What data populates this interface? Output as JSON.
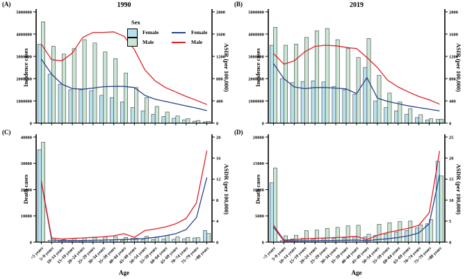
{
  "figure": {
    "background": "#ffffff",
    "x_axis_label": "Age",
    "age_categories": [
      "<5 years",
      "5~9 years",
      "10~14 years",
      "15~19 years",
      "20~24 years",
      "25~29 years",
      "30~34 years",
      "35~39 years",
      "40~44 years",
      "45~49 years",
      "50~54 years",
      "55~59 years",
      "60~64 years",
      "65~69 years",
      "70~74 years",
      "75~79 years",
      ">80 years"
    ],
    "colors": {
      "female_bar": "#b7e1f1",
      "male_bar": "#c9e7d4",
      "bar_stroke": "#3a3a3a",
      "female_line": "#27408b",
      "male_line": "#e01f26",
      "axis": "#000000"
    },
    "legend": {
      "title": "Sex",
      "bar_entries": [
        {
          "label": "Female",
          "color_key": "female_bar"
        },
        {
          "label": "Male",
          "color_key": "male_bar"
        }
      ],
      "line_entries": [
        {
          "label": "Female",
          "color_key": "female_line"
        },
        {
          "label": "Male",
          "color_key": "male_line"
        }
      ]
    }
  },
  "chart_data": [
    {
      "id": "A",
      "panel_label": "(A)",
      "title": "1990",
      "type": "bar+line",
      "left_axis": {
        "label": "Incidence cases",
        "min": 0,
        "max": 5000000,
        "ticks": [
          0,
          1000000,
          2000000,
          3000000,
          4000000,
          5000000
        ]
      },
      "right_axis": {
        "label": "ASIR (per 100,000)",
        "min": 0,
        "max": 2000,
        "ticks": [
          0,
          400,
          800,
          1200,
          1600,
          2000
        ]
      },
      "series": {
        "female_bars": [
          3550000,
          2200000,
          1750000,
          1500000,
          1500000,
          1450000,
          1250000,
          1150000,
          950000,
          700000,
          550000,
          400000,
          300000,
          220000,
          150000,
          90000,
          60000
        ],
        "male_bars": [
          4550000,
          3450000,
          3100000,
          3350000,
          3750000,
          3600000,
          3200000,
          2900000,
          2250000,
          1600000,
          1150000,
          750000,
          500000,
          320000,
          200000,
          120000,
          80000
        ],
        "female_line": [
          1150,
          880,
          700,
          620,
          610,
          630,
          655,
          660,
          660,
          640,
          500,
          430,
          390,
          350,
          310,
          270,
          225
        ],
        "male_line": [
          1420,
          1140,
          1120,
          1260,
          1540,
          1630,
          1630,
          1640,
          1560,
          1320,
          960,
          760,
          640,
          560,
          480,
          410,
          335
        ]
      }
    },
    {
      "id": "B",
      "panel_label": "(B)",
      "title": "2019",
      "type": "bar+line",
      "left_axis": {
        "label": "Incidence cases",
        "min": 0,
        "max": 5000000,
        "ticks": [
          0,
          1000000,
          2000000,
          3000000,
          4000000,
          5000000
        ]
      },
      "right_axis": {
        "label": "ASIR (per 100,000)",
        "min": 0,
        "max": 2000,
        "ticks": [
          0,
          400,
          800,
          1200,
          1600,
          2000
        ]
      },
      "series": {
        "female_bars": [
          3500000,
          2000000,
          1820000,
          1870000,
          1900000,
          1850000,
          1650000,
          1500000,
          1300000,
          2500000,
          1000000,
          700000,
          550000,
          400000,
          250000,
          150000,
          170000
        ],
        "male_bars": [
          4300000,
          3500000,
          3550000,
          3850000,
          4150000,
          4250000,
          3750000,
          3350000,
          2950000,
          3800000,
          2150000,
          1350000,
          950000,
          650000,
          380000,
          200000,
          180000
        ],
        "female_line": [
          1070,
          800,
          650,
          620,
          640,
          640,
          630,
          615,
          530,
          820,
          450,
          390,
          350,
          310,
          280,
          250,
          220
        ],
        "male_line": [
          1250,
          1060,
          1120,
          1280,
          1380,
          1400,
          1390,
          1360,
          1340,
          1180,
          1000,
          770,
          650,
          560,
          480,
          420,
          340
        ]
      }
    },
    {
      "id": "C",
      "panel_label": "(C)",
      "title": "",
      "type": "bar+line",
      "left_axis": {
        "label": "Death cases",
        "min": 0,
        "max": 40000,
        "ticks": [
          0,
          10000,
          20000,
          30000,
          40000
        ]
      },
      "right_axis": {
        "label": "ASDR (per 100,000)",
        "min": 0,
        "max": 20,
        "ticks": [
          0,
          4,
          8,
          12,
          16,
          20
        ]
      },
      "series": {
        "female_bars": [
          35200,
          700,
          500,
          500,
          500,
          600,
          700,
          800,
          600,
          1400,
          900,
          1000,
          1200,
          1100,
          1300,
          1600,
          4400
        ],
        "male_bars": [
          38000,
          1500,
          1000,
          1500,
          1600,
          1700,
          2000,
          2100,
          1800,
          1500,
          2200,
          2000,
          2500,
          2000,
          1800,
          1700,
          3300
        ],
        "female_line": [
          11.5,
          0.4,
          0.3,
          0.3,
          0.3,
          0.35,
          0.4,
          0.45,
          0.5,
          0.55,
          0.7,
          0.9,
          1.2,
          1.6,
          2.4,
          4.7,
          12.3
        ],
        "male_line": [
          11.6,
          0.8,
          0.6,
          0.7,
          0.8,
          0.9,
          1.0,
          1.2,
          1.6,
          0.9,
          2.2,
          2.5,
          2.9,
          3.5,
          4.5,
          7.5,
          17.4
        ]
      }
    },
    {
      "id": "D",
      "panel_label": "(D)",
      "title": "",
      "type": "bar+line",
      "left_axis": {
        "label": "Death cases",
        "min": 0,
        "max": 20000,
        "ticks": [
          0,
          5000,
          10000,
          15000,
          20000
        ]
      },
      "right_axis": {
        "label": "ASDR (per 100,000)",
        "min": 0,
        "max": 25,
        "ticks": [
          0,
          5,
          10,
          15,
          20,
          25
        ]
      },
      "series": {
        "female_bars": [
          11300,
          300,
          600,
          700,
          600,
          700,
          700,
          800,
          1100,
          1000,
          1300,
          1500,
          1900,
          2200,
          2700,
          3500,
          15400
        ],
        "male_bars": [
          14100,
          1200,
          1300,
          2200,
          2300,
          2600,
          2800,
          3100,
          3200,
          1500,
          3400,
          3700,
          3900,
          4000,
          3300,
          4300,
          12600
        ],
        "female_line": [
          3.6,
          0.3,
          0.3,
          0.35,
          0.35,
          0.4,
          0.4,
          0.45,
          0.5,
          0.35,
          0.6,
          0.8,
          1.1,
          1.5,
          2.2,
          4.4,
          16.0
        ],
        "male_line": [
          4.0,
          0.5,
          0.6,
          0.8,
          0.9,
          1.0,
          1.1,
          1.2,
          1.35,
          0.6,
          1.6,
          2.3,
          2.8,
          3.3,
          4.0,
          7.0,
          21.7
        ]
      }
    }
  ]
}
